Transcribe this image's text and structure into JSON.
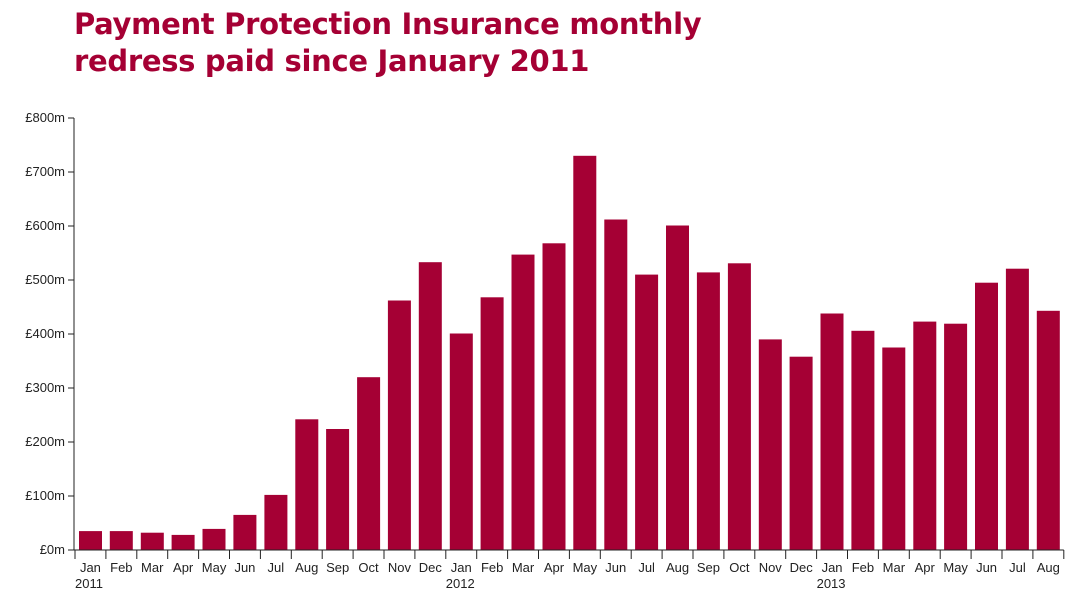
{
  "chart_data": {
    "type": "bar",
    "title_lines": [
      "Payment Protection Insurance monthly",
      "redress paid since January 2011"
    ],
    "title": "Payment Protection Insurance monthly redress paid since January 2011",
    "categories": [
      "Jan",
      "Feb",
      "Mar",
      "Apr",
      "May",
      "Jun",
      "Jul",
      "Aug",
      "Sep",
      "Oct",
      "Nov",
      "Dec",
      "Jan",
      "Feb",
      "Mar",
      "Apr",
      "May",
      "Jun",
      "Jul",
      "Aug",
      "Sep",
      "Oct",
      "Nov",
      "Dec",
      "Jan",
      "Feb",
      "Mar",
      "Apr",
      "May",
      "Jun",
      "Jul",
      "Aug"
    ],
    "year_labels": [
      {
        "index": 0,
        "label": "2011"
      },
      {
        "index": 12,
        "label": "2012"
      },
      {
        "index": 24,
        "label": "2013"
      }
    ],
    "values": [
      35,
      35,
      32,
      28,
      39,
      65,
      102,
      242,
      224,
      320,
      462,
      533,
      401,
      468,
      547,
      568,
      730,
      612,
      510,
      601,
      514,
      531,
      390,
      358,
      438,
      406,
      375,
      423,
      419,
      495,
      521,
      443
    ],
    "ylim": [
      0,
      800
    ],
    "yticks": [
      0,
      100,
      200,
      300,
      400,
      500,
      600,
      700,
      800
    ],
    "ytick_labels": [
      "£0m",
      "£100m",
      "£200m",
      "£300m",
      "£400m",
      "£500m",
      "£600m",
      "£700m",
      "£800m"
    ],
    "xlabel": "",
    "ylabel": "",
    "grid": false,
    "bar_color": "#a50034"
  }
}
